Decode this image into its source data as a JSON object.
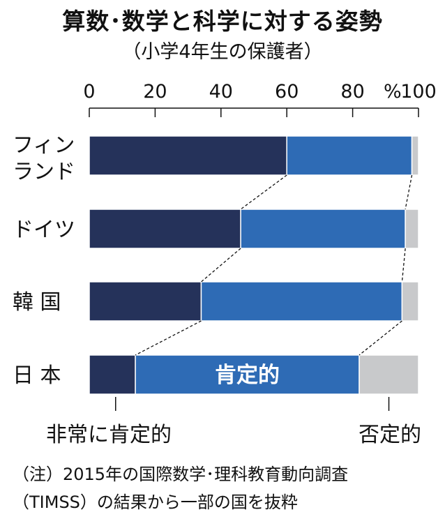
{
  "title": "算数･数学と科学に対する姿勢",
  "subtitle": "（小学4年生の保護者）",
  "chart_data": {
    "type": "bar",
    "stacked": true,
    "orientation": "horizontal",
    "unit": "%",
    "categories": [
      "フィン\nランド",
      "ドイツ",
      "韓 国",
      "日 本"
    ],
    "series": [
      {
        "name": "非常に肯定的",
        "values": [
          60,
          46,
          34,
          14
        ],
        "color": "#25325a"
      },
      {
        "name": "肯定的",
        "values": [
          38,
          50,
          61,
          68
        ],
        "color": "#2e6bb5"
      },
      {
        "name": "否定的",
        "values": [
          2,
          4,
          5,
          18
        ],
        "color": "#c8c9cb"
      }
    ],
    "xlim": [
      0,
      100
    ],
    "xticks": [
      0,
      20,
      40,
      60,
      80,
      100
    ],
    "inline_label": "肯定的"
  },
  "notes": [
    "（注）2015年の国際数学･理科教育動向調査",
    "（TIMSS）の結果から一部の国を抜粋"
  ]
}
